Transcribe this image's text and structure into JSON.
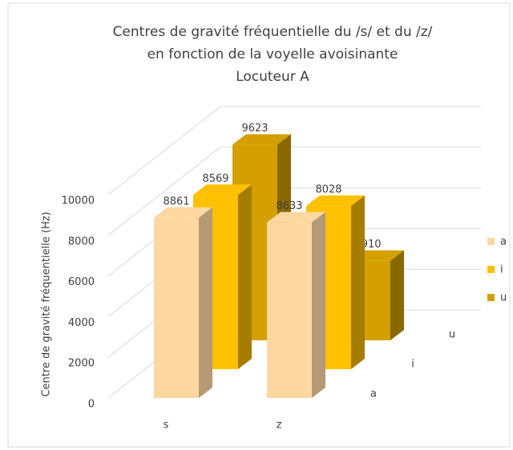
{
  "chart_data": {
    "type": "bar3d",
    "title": [
      "Centres de gravité fréquentielle du /s/ et du /z/",
      "en fonction de la voyelle avoisinante",
      "Locuteur A"
    ],
    "y_label": "Centre de gravité fréquentielle (Hz)",
    "categories": [
      "s",
      "z"
    ],
    "series": [
      {
        "name": "a",
        "color": "#fdd7a0",
        "side": "#b59a76",
        "values": [
          8861,
          8633
        ]
      },
      {
        "name": "i",
        "color": "#ffc000",
        "side": "#a67d00",
        "values": [
          8569,
          8028
        ]
      },
      {
        "name": "u",
        "color": "#d4a000",
        "side": "#8a6800",
        "values": [
          9623,
          3910
        ]
      }
    ],
    "ylim": [
      0,
      10000
    ],
    "yticks": [
      0,
      2000,
      4000,
      6000,
      8000,
      10000
    ],
    "grid": true,
    "legend": "right"
  }
}
